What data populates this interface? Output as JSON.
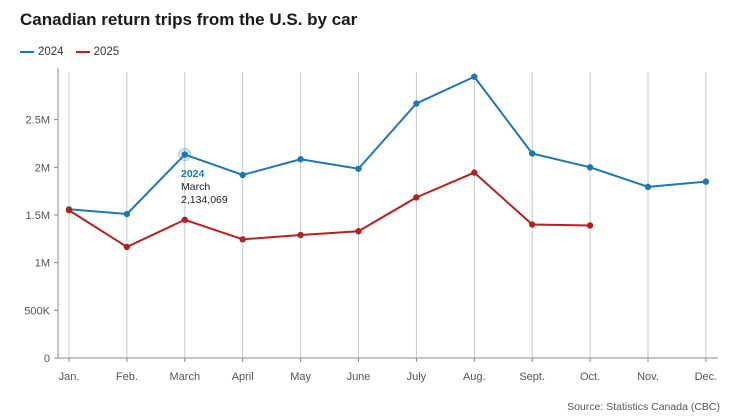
{
  "chart_data": {
    "type": "line",
    "title": "Canadian return trips from the U.S. by car",
    "categories": [
      "Jan.",
      "Feb.",
      "March",
      "April",
      "May",
      "June",
      "July",
      "Aug.",
      "Sept.",
      "Oct.",
      "Nov.",
      "Dec."
    ],
    "series": [
      {
        "name": "2024",
        "color": "#1f77b4",
        "values": [
          1560000,
          1510000,
          2134069,
          1920000,
          2085000,
          1985000,
          2670000,
          2950000,
          2145000,
          2000000,
          1795000,
          1850000
        ]
      },
      {
        "name": "2025",
        "color": "#b22222",
        "values": [
          1550000,
          1165000,
          1450000,
          1245000,
          1290000,
          1330000,
          1685000,
          1945000,
          1400000,
          1390000,
          null,
          null
        ]
      }
    ],
    "y_ticks": [
      0,
      500000,
      1000000,
      1500000,
      2000000,
      2500000
    ],
    "y_tick_labels": [
      "0",
      "500K",
      "1M",
      "1.5M",
      "2M",
      "2.5M"
    ],
    "ylim": [
      0,
      3000000
    ],
    "grid": "vertical",
    "legend": "top-left",
    "tooltip": {
      "series": "2024",
      "month": "March",
      "value": "2,134,069",
      "index": 2
    },
    "source": "Source: Statistics Canada (CBC)"
  }
}
